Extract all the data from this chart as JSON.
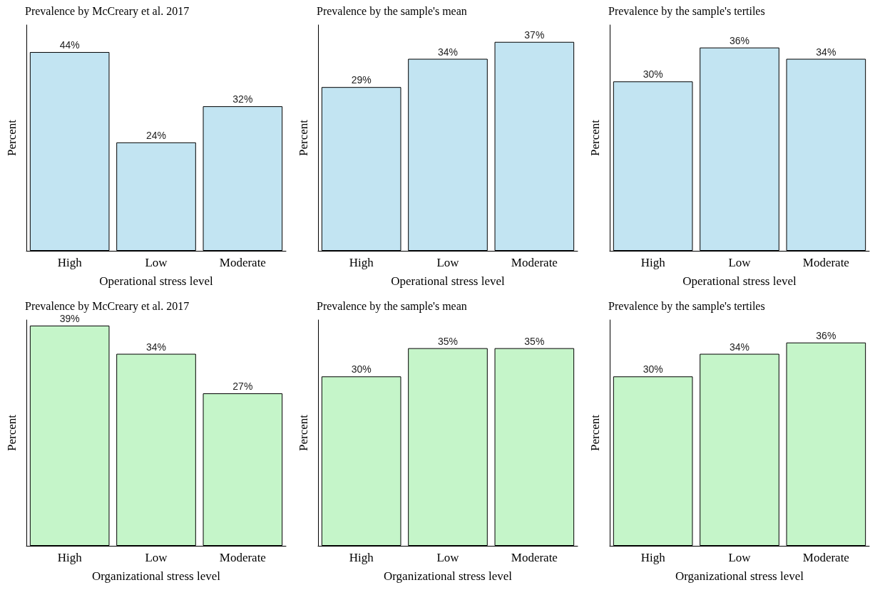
{
  "chart_data": [
    {
      "type": "bar",
      "title": "Prevalence by McCreary et al. 2017",
      "xlabel": "Operational stress level",
      "ylabel": "Percent",
      "categories": [
        "High",
        "Low",
        "Moderate"
      ],
      "values": [
        44,
        24,
        32
      ],
      "value_labels": [
        "44%",
        "24%",
        "32%"
      ],
      "color": "#c2e4f2"
    },
    {
      "type": "bar",
      "title": "Prevalence by the sample's mean",
      "xlabel": "Operational stress level",
      "ylabel": "Percent",
      "categories": [
        "High",
        "Low",
        "Moderate"
      ],
      "values": [
        29,
        34,
        37
      ],
      "value_labels": [
        "29%",
        "34%",
        "37%"
      ],
      "color": "#c2e4f2"
    },
    {
      "type": "bar",
      "title": "Prevalence by the sample's tertiles",
      "xlabel": "Operational stress level",
      "ylabel": "Percent",
      "categories": [
        "High",
        "Low",
        "Moderate"
      ],
      "values": [
        30,
        36,
        34
      ],
      "value_labels": [
        "30%",
        "36%",
        "34%"
      ],
      "color": "#c2e4f2"
    },
    {
      "type": "bar",
      "title": "Prevalence by McCreary et al. 2017",
      "xlabel": "Organizational stress level",
      "ylabel": "Percent",
      "categories": [
        "High",
        "Low",
        "Moderate"
      ],
      "values": [
        39,
        34,
        27
      ],
      "value_labels": [
        "39%",
        "34%",
        "27%"
      ],
      "color": "#c5f5c9"
    },
    {
      "type": "bar",
      "title": "Prevalence by the sample's mean",
      "xlabel": "Organizational stress level",
      "ylabel": "Percent",
      "categories": [
        "High",
        "Low",
        "Moderate"
      ],
      "values": [
        30,
        35,
        35
      ],
      "value_labels": [
        "30%",
        "35%",
        "35%"
      ],
      "color": "#c5f5c9"
    },
    {
      "type": "bar",
      "title": "Prevalence by the sample's tertiles",
      "xlabel": "Organizational stress level",
      "ylabel": "Percent",
      "categories": [
        "High",
        "Low",
        "Moderate"
      ],
      "values": [
        30,
        34,
        36
      ],
      "value_labels": [
        "30%",
        "34%",
        "36%"
      ],
      "color": "#c5f5c9"
    }
  ]
}
